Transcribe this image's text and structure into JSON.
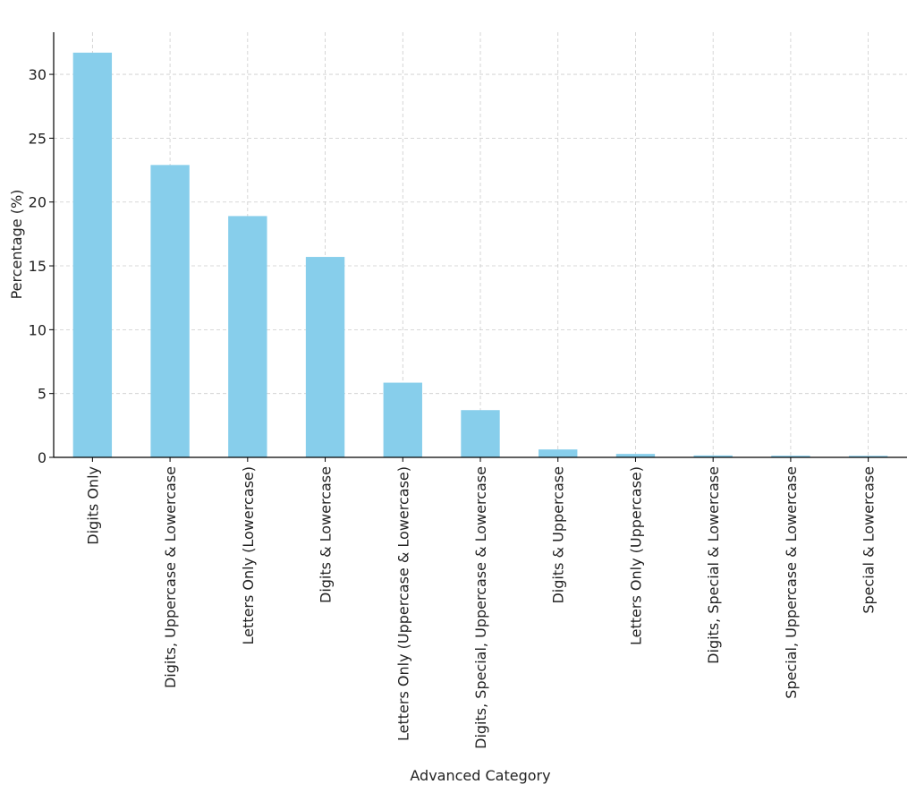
{
  "chart_data": {
    "type": "bar",
    "title": "",
    "xlabel": "Advanced Category",
    "ylabel": "Percentage (%)",
    "ylim": [
      0,
      33.3
    ],
    "yticks": [
      0,
      5,
      10,
      15,
      20,
      25,
      30
    ],
    "grid": true,
    "legend": "none",
    "bar_color": "#87CEEB",
    "categories": [
      "Digits Only",
      "Digits, Uppercase & Lowercase",
      "Letters Only (Lowercase)",
      "Digits & Lowercase",
      "Letters Only (Uppercase & Lowercase)",
      "Digits, Special, Uppercase & Lowercase",
      "Digits & Uppercase",
      "Letters Only (Uppercase)",
      "Digits, Special & Lowercase",
      "Special, Uppercase & Lowercase",
      "Special & Lowercase"
    ],
    "values": [
      31.7,
      22.9,
      18.9,
      15.7,
      5.85,
      3.7,
      0.62,
      0.27,
      0.15,
      0.13,
      0.12
    ]
  }
}
